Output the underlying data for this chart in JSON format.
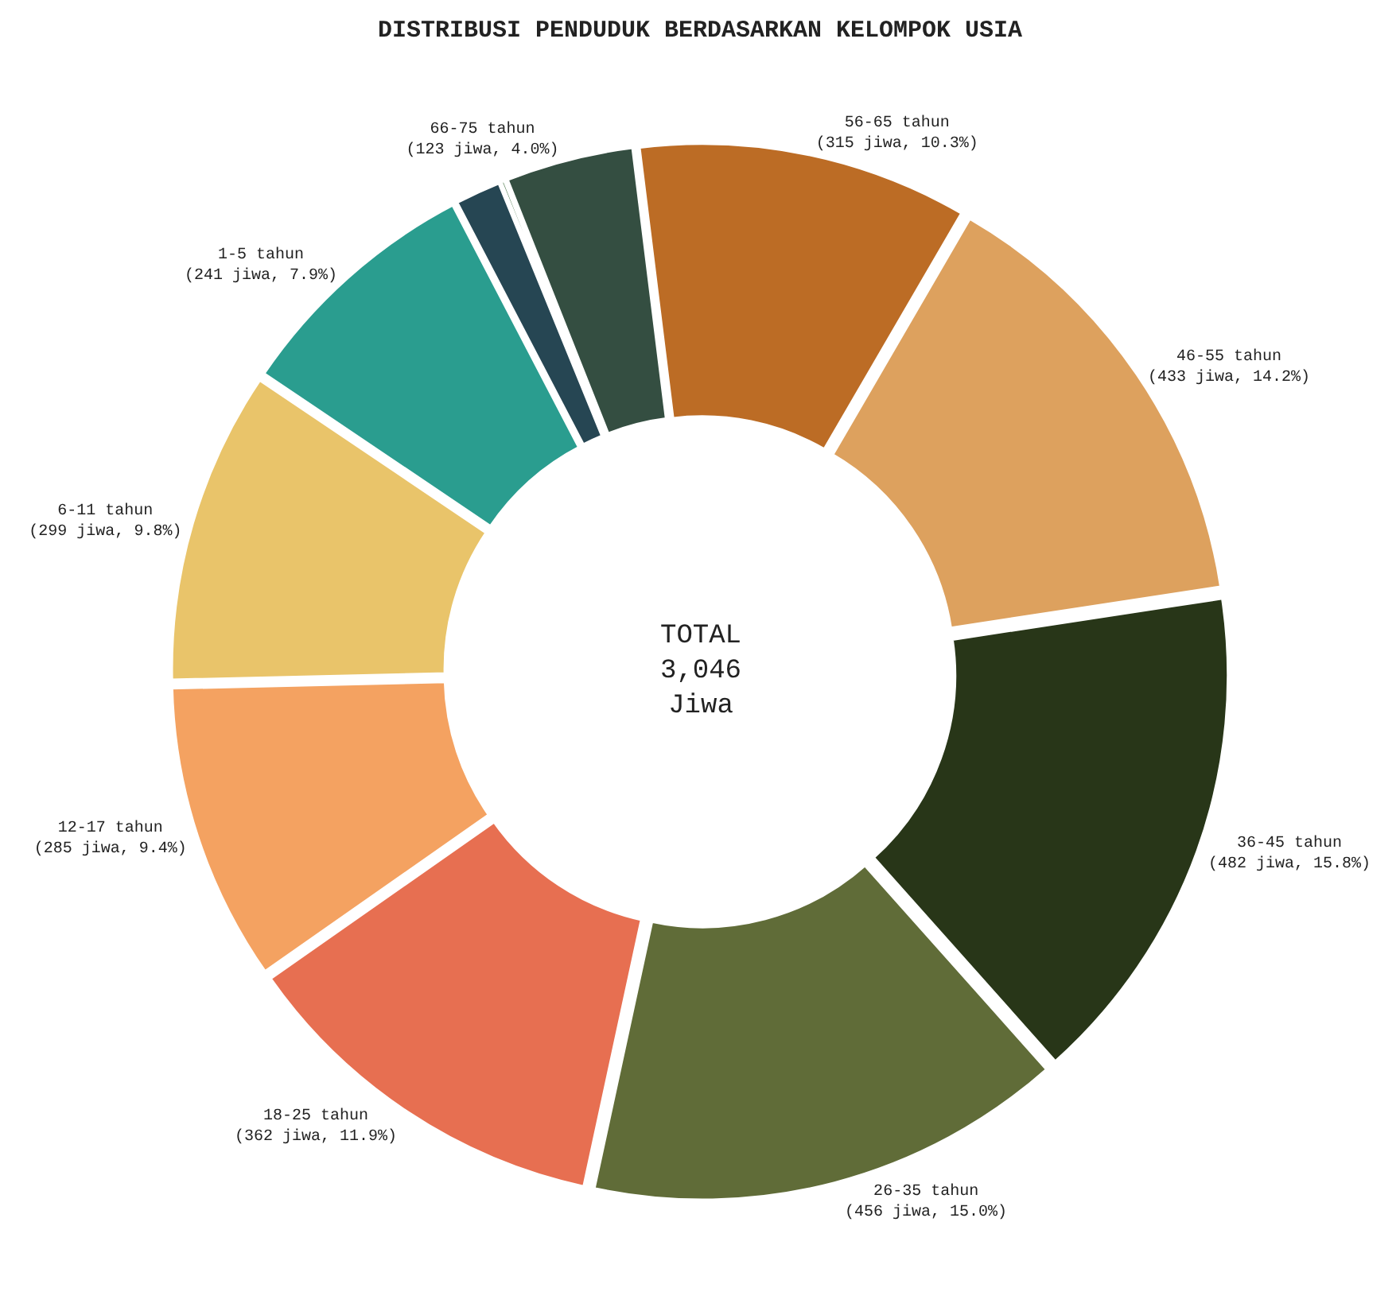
{
  "chart_data": {
    "type": "donut",
    "title": "DISTRIBUSI PENDUDUK BERDASARKAN KELOMPOK USIA",
    "categories": [
      "1-5 tahun",
      "6-11 tahun",
      "12-17 tahun",
      "18-25 tahun",
      "26-35 tahun",
      "36-45 tahun",
      "46-55 tahun",
      "56-65 tahun",
      "66-75 tahun",
      null,
      null
    ],
    "values": [
      241,
      299,
      285,
      362,
      456,
      482,
      433,
      315,
      123,
      5,
      45
    ],
    "value_labels": [
      "(241 jiwa, 7.9%)",
      "(299 jiwa, 9.8%)",
      "(285 jiwa, 9.4%)",
      "(362 jiwa, 11.9%)",
      "(456 jiwa, 15.0%)",
      "(482 jiwa, 15.8%)",
      "(433 jiwa, 14.2%)",
      "(315 jiwa, 10.3%)",
      "(123 jiwa, 4.0%)",
      null,
      null
    ],
    "colors": [
      "#2a9d8f",
      "#e9c46a",
      "#f4a261",
      "#e76f51",
      "#606c38",
      "#283618",
      "#dda15e",
      "#bc6c25",
      "#344e41",
      "#588157",
      "#264653"
    ],
    "annotations": [
      "TOTAL\n3,046\nJiwa"
    ],
    "legend": false
  }
}
